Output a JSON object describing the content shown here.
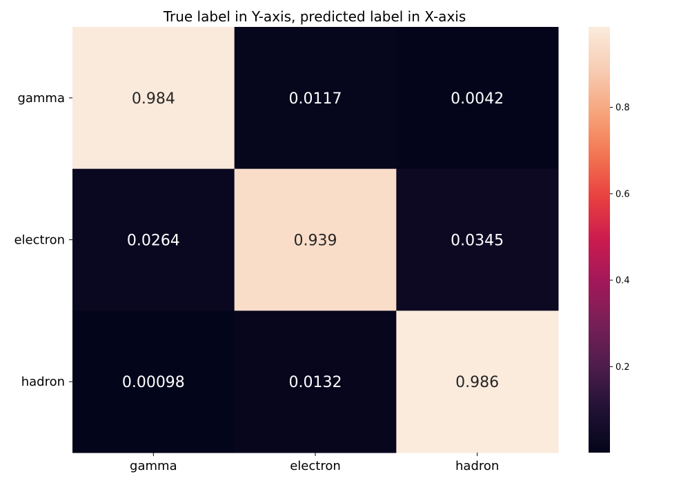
{
  "chart_data": {
    "type": "heatmap",
    "title": "True label in Y-axis, predicted label in X-axis",
    "xlabel": "",
    "ylabel": "",
    "x_categories": [
      "gamma",
      "electron",
      "hadron"
    ],
    "y_categories": [
      "gamma",
      "electron",
      "hadron"
    ],
    "values": [
      [
        0.984,
        0.0117,
        0.0042
      ],
      [
        0.0264,
        0.939,
        0.0345
      ],
      [
        0.00098,
        0.0132,
        0.986
      ]
    ],
    "cell_labels": [
      [
        "0.984",
        "0.0117",
        "0.0042"
      ],
      [
        "0.0264",
        "0.939",
        "0.0345"
      ],
      [
        "0.00098",
        "0.0132",
        "0.986"
      ]
    ],
    "colormap": "rocket",
    "colorbar": {
      "range": [
        0.00098,
        0.986
      ],
      "ticks": [
        0.2,
        0.4,
        0.6,
        0.8
      ],
      "tick_labels": [
        "0.2",
        "0.4",
        "0.6",
        "0.8"
      ]
    },
    "grid": false,
    "legend": "colorbar-right"
  }
}
